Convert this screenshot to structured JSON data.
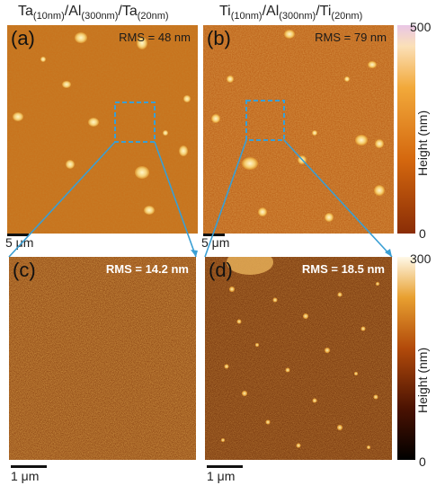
{
  "titles": {
    "left": {
      "base1": "Ta",
      "sub1": "(10nm)",
      "mid1": "/Al",
      "sub2": "(300nm)",
      "mid2": "/Ta",
      "sub3": "(20nm)"
    },
    "right": {
      "base1": "Ti",
      "sub1": "(10nm)",
      "mid1": "/Al",
      "sub2": "(300nm)",
      "mid2": "/Ti",
      "sub3": "(20nm)"
    }
  },
  "panels": {
    "a": {
      "label": "(a)",
      "rms": "RMS = 48 nm"
    },
    "b": {
      "label": "(b)",
      "rms": "RMS = 79 nm"
    },
    "c": {
      "label": "(c)",
      "rms": "RMS = 14.2 nm"
    },
    "d": {
      "label": "(d)",
      "rms": "RMS = 18.5 nm"
    }
  },
  "scale_bars": {
    "top_left": "5 μm",
    "top_right": "5 μm",
    "bottom_left": "1 μm",
    "bottom_right": "1 μm"
  },
  "colorbars": {
    "top": {
      "max": "500",
      "min": "0",
      "title": "Height (nm)",
      "colors": [
        "#8a2d06",
        "#d4670e",
        "#f2a93a",
        "#fbe0b8",
        "#e9c6e6"
      ]
    },
    "bottom": {
      "max": "300",
      "min": "0",
      "title": "Height (nm)",
      "colors": [
        "#000000",
        "#4a1202",
        "#b24a0a",
        "#e8a030",
        "#fff9e8"
      ]
    }
  },
  "colors": {
    "zoom_box": "#3a9fd4",
    "substrate_a": "#c8701a",
    "substrate_b": "#b85a12",
    "substrate_cd": "#8a3a08"
  }
}
